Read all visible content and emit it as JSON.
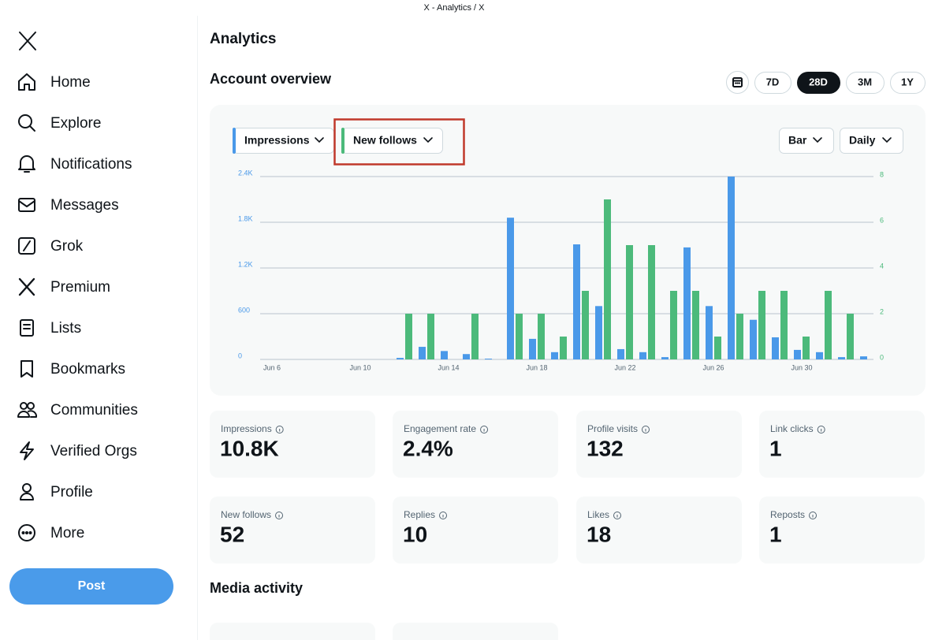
{
  "window_title": "X - Analytics / X",
  "nav": [
    "Home",
    "Explore",
    "Notifications",
    "Messages",
    "Grok",
    "Premium",
    "Lists",
    "Bookmarks",
    "Communities",
    "Verified Orgs",
    "Profile",
    "More"
  ],
  "post_button": "Post",
  "page_title": "Analytics",
  "section_title": "Account overview",
  "ranges": [
    "7D",
    "28D",
    "3M",
    "1Y"
  ],
  "active_range": "28D",
  "chart_menus": [
    "Bar",
    "Daily"
  ],
  "chart_data": {
    "type": "bar",
    "categories": [
      "Jun 6",
      null,
      null,
      null,
      "Jun 10",
      null,
      null,
      null,
      "Jun 14",
      null,
      null,
      null,
      "Jun 18",
      null,
      null,
      null,
      "Jun 22",
      null,
      null,
      null,
      "Jun 26",
      null,
      null,
      null,
      "Jun 30",
      null,
      null,
      null
    ],
    "series": [
      {
        "name": "Impressions",
        "color": "#4a99e9",
        "values": [
          0,
          0,
          0,
          0,
          0,
          0,
          20,
          165,
          110,
          70,
          10,
          1860,
          270,
          95,
          1510,
          700,
          135,
          95,
          30,
          1470,
          700,
          2400,
          520,
          290,
          125,
          95,
          30,
          40
        ]
      },
      {
        "name": "New follows",
        "color": "#4cba7b",
        "axis": "y2",
        "values": [
          0,
          0,
          0,
          0,
          0,
          0,
          2,
          2,
          0,
          2,
          0,
          2,
          2,
          1,
          3,
          7,
          5,
          5,
          3,
          3,
          1,
          2,
          3,
          3,
          1,
          3,
          2,
          0
        ]
      }
    ],
    "ylim": [
      0,
      2400
    ],
    "yticks": [
      0,
      600,
      {
        "value": 1200,
        "label": "1.2K"
      },
      {
        "value": 1800,
        "label": "1.8K"
      },
      {
        "value": 2400,
        "label": "2.4K"
      }
    ],
    "y2lim": [
      0,
      8
    ],
    "y2ticks": [
      0,
      2,
      4,
      6,
      8
    ],
    "grid": true
  },
  "stats": [
    {
      "label": "Impressions",
      "value": "10.8K"
    },
    {
      "label": "Engagement rate",
      "value": "2.4%"
    },
    {
      "label": "Profile visits",
      "value": 132
    },
    {
      "label": "Link clicks",
      "value": 1
    },
    {
      "label": "New follows",
      "value": 52
    },
    {
      "label": "Replies",
      "value": 10
    },
    {
      "label": "Likes",
      "value": 18
    },
    {
      "label": "Reposts",
      "value": 1
    }
  ],
  "media_title": "Media activity"
}
